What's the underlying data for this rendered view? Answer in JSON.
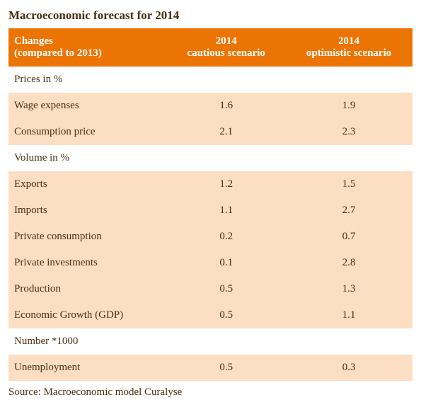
{
  "title": "Macroeconomic forecast for 2014",
  "header": {
    "col0_line1": "Changes",
    "col0_line2": "(compared to 2013)",
    "col1_line1": "2014",
    "col1_line2": "cautious scenario",
    "col2_line1": "2014",
    "col2_line2": "optimistic scenario"
  },
  "sections": [
    {
      "label": "Prices in %",
      "rows": [
        {
          "label": "Wage expenses",
          "cautious": "1.6",
          "optimistic": "1.9"
        },
        {
          "label": "Consumption price",
          "cautious": "2.1",
          "optimistic": "2.3"
        }
      ]
    },
    {
      "label": "Volume in %",
      "rows": [
        {
          "label": "Exports",
          "cautious": "1.2",
          "optimistic": "1.5"
        },
        {
          "label": "Imports",
          "cautious": "1.1",
          "optimistic": "2.7"
        },
        {
          "label": "Private consumption",
          "cautious": "0.2",
          "optimistic": "0.7"
        },
        {
          "label": "Private investments",
          "cautious": "0.1",
          "optimistic": "2.8"
        },
        {
          "label": "Production",
          "cautious": "0.5",
          "optimistic": "1.3"
        },
        {
          "label": "Economic Growth (GDP)",
          "cautious": "0.5",
          "optimistic": "1.1"
        }
      ]
    },
    {
      "label": "Number *1000",
      "rows": [
        {
          "label": "Unemployment",
          "cautious": "0.5",
          "optimistic": "0.3"
        }
      ]
    }
  ],
  "source": "Source: Macroeconomic model Curalyse",
  "colors": {
    "header_bg": "#ec7404",
    "header_text": "#ffffff",
    "row_bg": "#fcdfc3",
    "section_bg": "#ffffff",
    "text": "#4a2e10"
  }
}
